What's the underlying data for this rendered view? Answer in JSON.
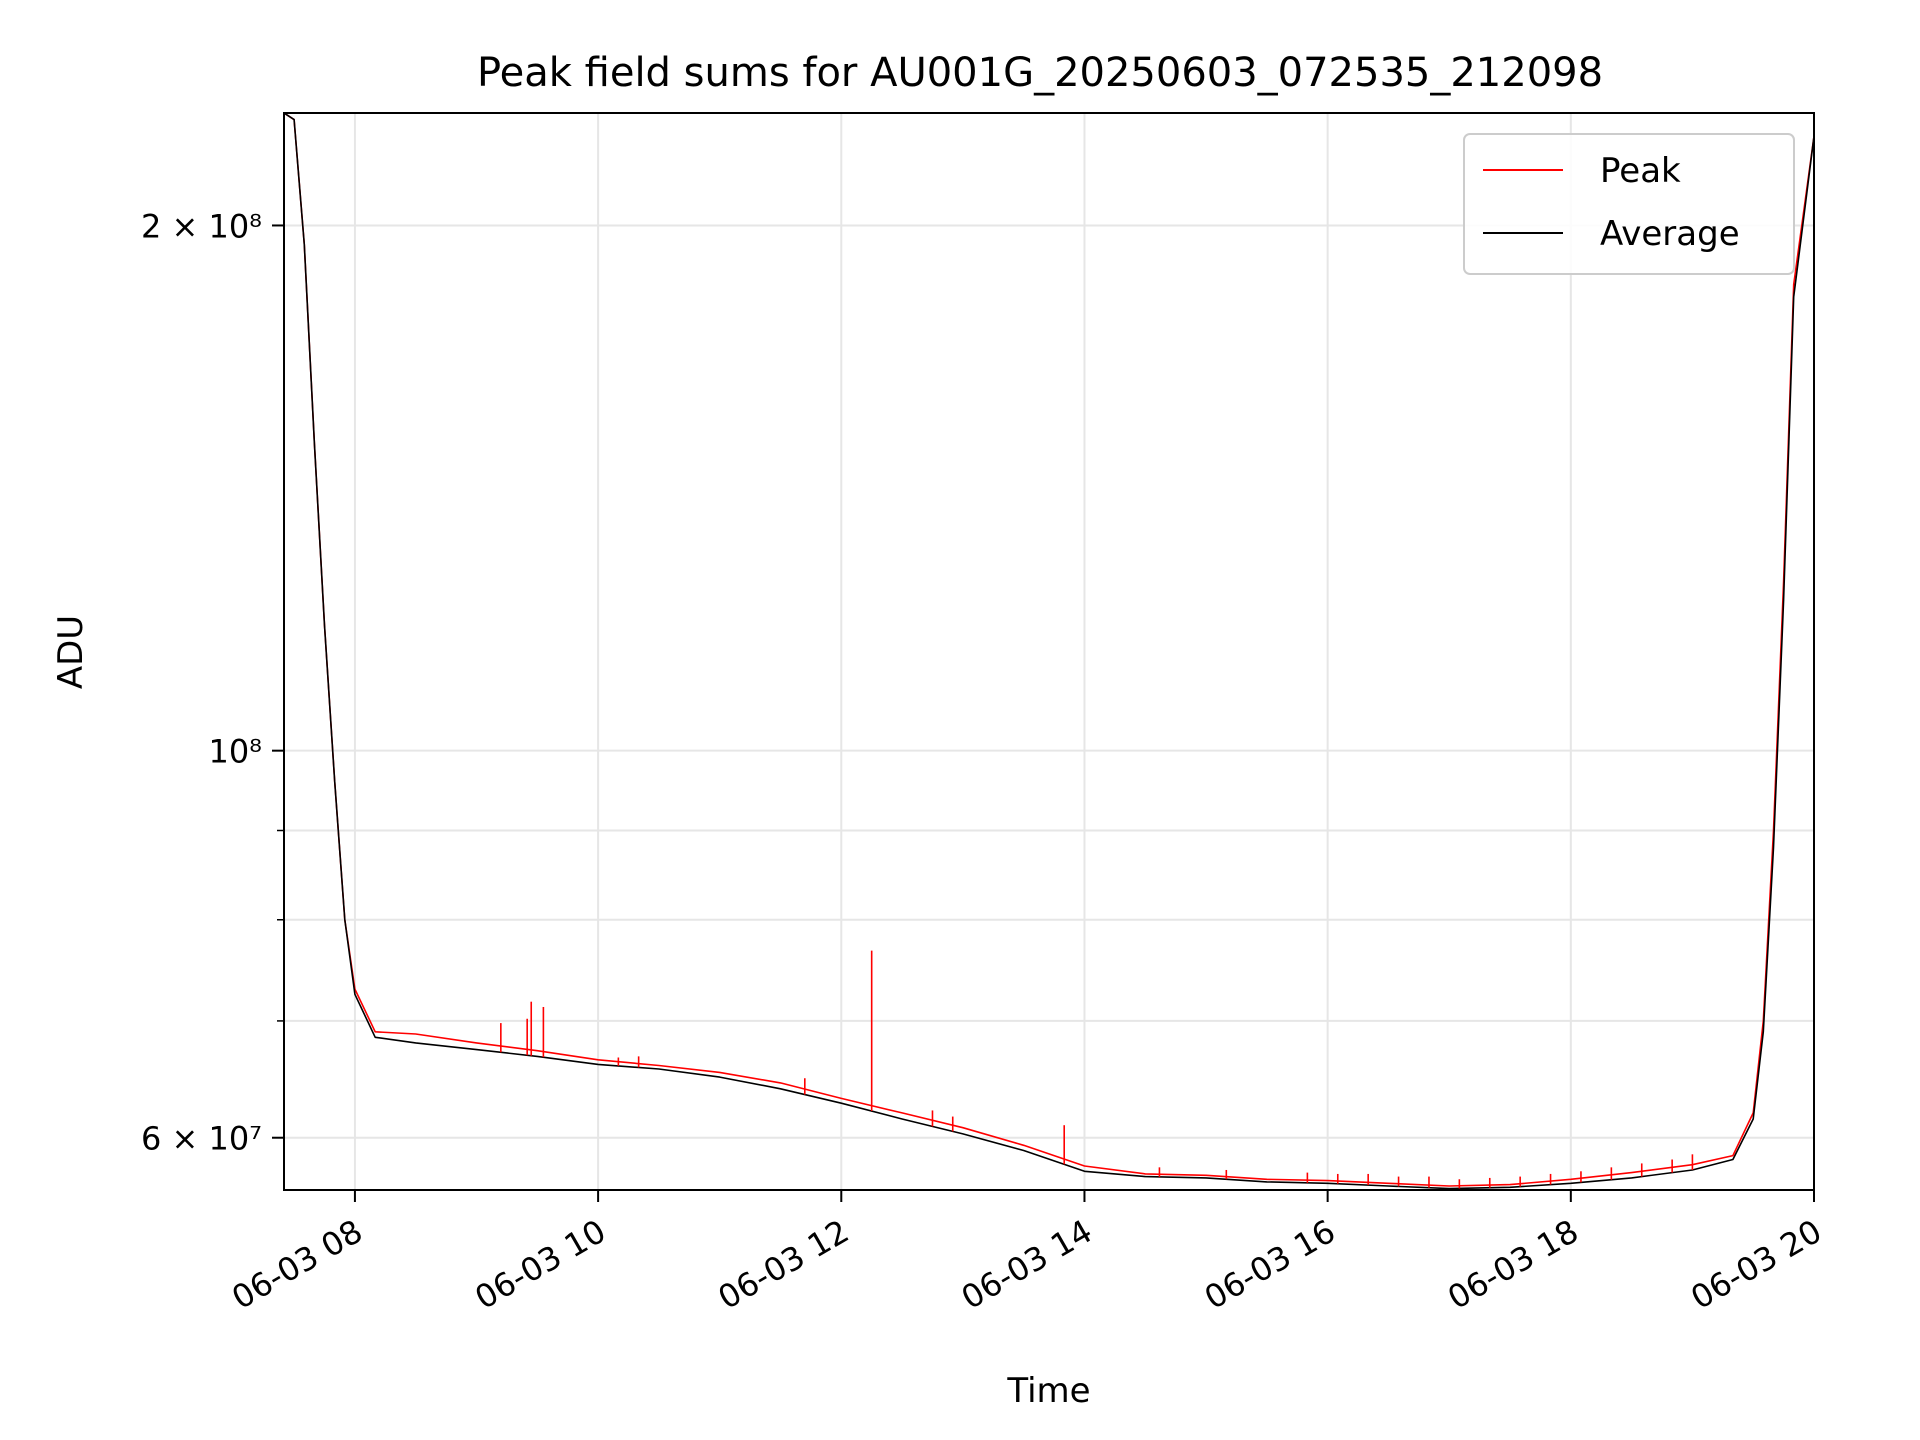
{
  "chart_data": {
    "type": "line",
    "title": "Peak field sums for AU001G_20250603_072535_212098",
    "xlabel": "Time",
    "ylabel": "ADU",
    "y_scale": "log",
    "xlim": [
      "2025-06-03 07:25",
      "2025-06-03 20:00"
    ],
    "ylim": [
      56000000,
      232000000
    ],
    "grid": true,
    "legend_position": "top-right",
    "x_ticks": [
      "06-03 08",
      "06-03 10",
      "06-03 12",
      "06-03 14",
      "06-03 16",
      "06-03 18",
      "06-03 20"
    ],
    "x_tick_times": [
      "07:25",
      "08:00",
      "10:00",
      "12:00",
      "14:00",
      "16:00",
      "18:00",
      "20:00"
    ],
    "y_ticks_major": [
      {
        "value": 60000000,
        "label": "6 × 10⁷"
      },
      {
        "value": 100000000,
        "label": "10⁸"
      },
      {
        "value": 200000000,
        "label": "2 × 10⁸"
      }
    ],
    "y_ticks_minor": [
      70000000,
      80000000,
      90000000
    ],
    "series": [
      {
        "name": "Peak",
        "color": "#ff0000",
        "points": [
          [
            "07:25",
            232000000
          ],
          [
            "07:30",
            230000000
          ],
          [
            "07:35",
            195000000
          ],
          [
            "07:40",
            150000000
          ],
          [
            "07:45",
            118000000
          ],
          [
            "07:50",
            96000000
          ],
          [
            "07:55",
            80000000
          ],
          [
            "08:00",
            73000000
          ],
          [
            "08:10",
            69000000
          ],
          [
            "08:30",
            68800000
          ],
          [
            "09:00",
            68000000
          ],
          [
            "09:30",
            67300000
          ],
          [
            "10:00",
            66500000
          ],
          [
            "10:30",
            66000000
          ],
          [
            "11:00",
            65400000
          ],
          [
            "11:30",
            64500000
          ],
          [
            "12:00",
            63200000
          ],
          [
            "12:30",
            62000000
          ],
          [
            "13:00",
            60800000
          ],
          [
            "13:30",
            59400000
          ],
          [
            "14:00",
            57800000
          ],
          [
            "14:30",
            57200000
          ],
          [
            "15:00",
            57100000
          ],
          [
            "15:30",
            56800000
          ],
          [
            "16:00",
            56700000
          ],
          [
            "16:30",
            56500000
          ],
          [
            "17:00",
            56300000
          ],
          [
            "17:30",
            56400000
          ],
          [
            "18:00",
            56800000
          ],
          [
            "18:30",
            57300000
          ],
          [
            "19:00",
            57900000
          ],
          [
            "19:20",
            58600000
          ],
          [
            "19:30",
            62000000
          ],
          [
            "19:35",
            70000000
          ],
          [
            "19:40",
            90000000
          ],
          [
            "19:45",
            125000000
          ],
          [
            "19:50",
            185000000
          ],
          [
            "20:00",
            225000000
          ]
        ]
      },
      {
        "name": "Average",
        "color": "#000000",
        "points": [
          [
            "07:25",
            232000000
          ],
          [
            "07:30",
            230000000
          ],
          [
            "07:35",
            195000000
          ],
          [
            "07:40",
            150000000
          ],
          [
            "07:45",
            118000000
          ],
          [
            "07:50",
            96000000
          ],
          [
            "07:55",
            80000000
          ],
          [
            "08:00",
            72500000
          ],
          [
            "08:10",
            68500000
          ],
          [
            "08:30",
            68000000
          ],
          [
            "09:00",
            67400000
          ],
          [
            "09:30",
            66800000
          ],
          [
            "10:00",
            66100000
          ],
          [
            "10:30",
            65700000
          ],
          [
            "11:00",
            65000000
          ],
          [
            "11:30",
            64000000
          ],
          [
            "12:00",
            62800000
          ],
          [
            "12:30",
            61500000
          ],
          [
            "13:00",
            60300000
          ],
          [
            "13:30",
            59000000
          ],
          [
            "14:00",
            57400000
          ],
          [
            "14:30",
            57000000
          ],
          [
            "15:00",
            56900000
          ],
          [
            "15:30",
            56600000
          ],
          [
            "16:00",
            56500000
          ],
          [
            "16:30",
            56300000
          ],
          [
            "17:00",
            56100000
          ],
          [
            "17:30",
            56200000
          ],
          [
            "18:00",
            56500000
          ],
          [
            "18:30",
            56900000
          ],
          [
            "19:00",
            57500000
          ],
          [
            "19:20",
            58300000
          ],
          [
            "19:30",
            61500000
          ],
          [
            "19:35",
            69000000
          ],
          [
            "19:40",
            88000000
          ],
          [
            "19:45",
            122000000
          ],
          [
            "19:50",
            182000000
          ],
          [
            "20:00",
            225000000
          ]
        ]
      }
    ],
    "peak_spikes": [
      [
        "09:12",
        69800000
      ],
      [
        "09:25",
        70200000
      ],
      [
        "09:27",
        71800000
      ],
      [
        "09:33",
        71300000
      ],
      [
        "10:10",
        66700000
      ],
      [
        "10:20",
        66800000
      ],
      [
        "11:42",
        64900000
      ],
      [
        "12:15",
        76800000
      ],
      [
        "12:45",
        62200000
      ],
      [
        "12:55",
        61700000
      ],
      [
        "13:50",
        61000000
      ],
      [
        "14:37",
        57700000
      ],
      [
        "15:10",
        57500000
      ],
      [
        "15:50",
        57300000
      ],
      [
        "16:05",
        57200000
      ],
      [
        "16:20",
        57200000
      ],
      [
        "16:35",
        57000000
      ],
      [
        "16:50",
        57000000
      ],
      [
        "17:05",
        56800000
      ],
      [
        "17:20",
        56900000
      ],
      [
        "17:35",
        57000000
      ],
      [
        "17:50",
        57200000
      ],
      [
        "18:05",
        57400000
      ],
      [
        "18:20",
        57700000
      ],
      [
        "18:35",
        58000000
      ],
      [
        "18:50",
        58300000
      ],
      [
        "19:00",
        58700000
      ]
    ]
  }
}
